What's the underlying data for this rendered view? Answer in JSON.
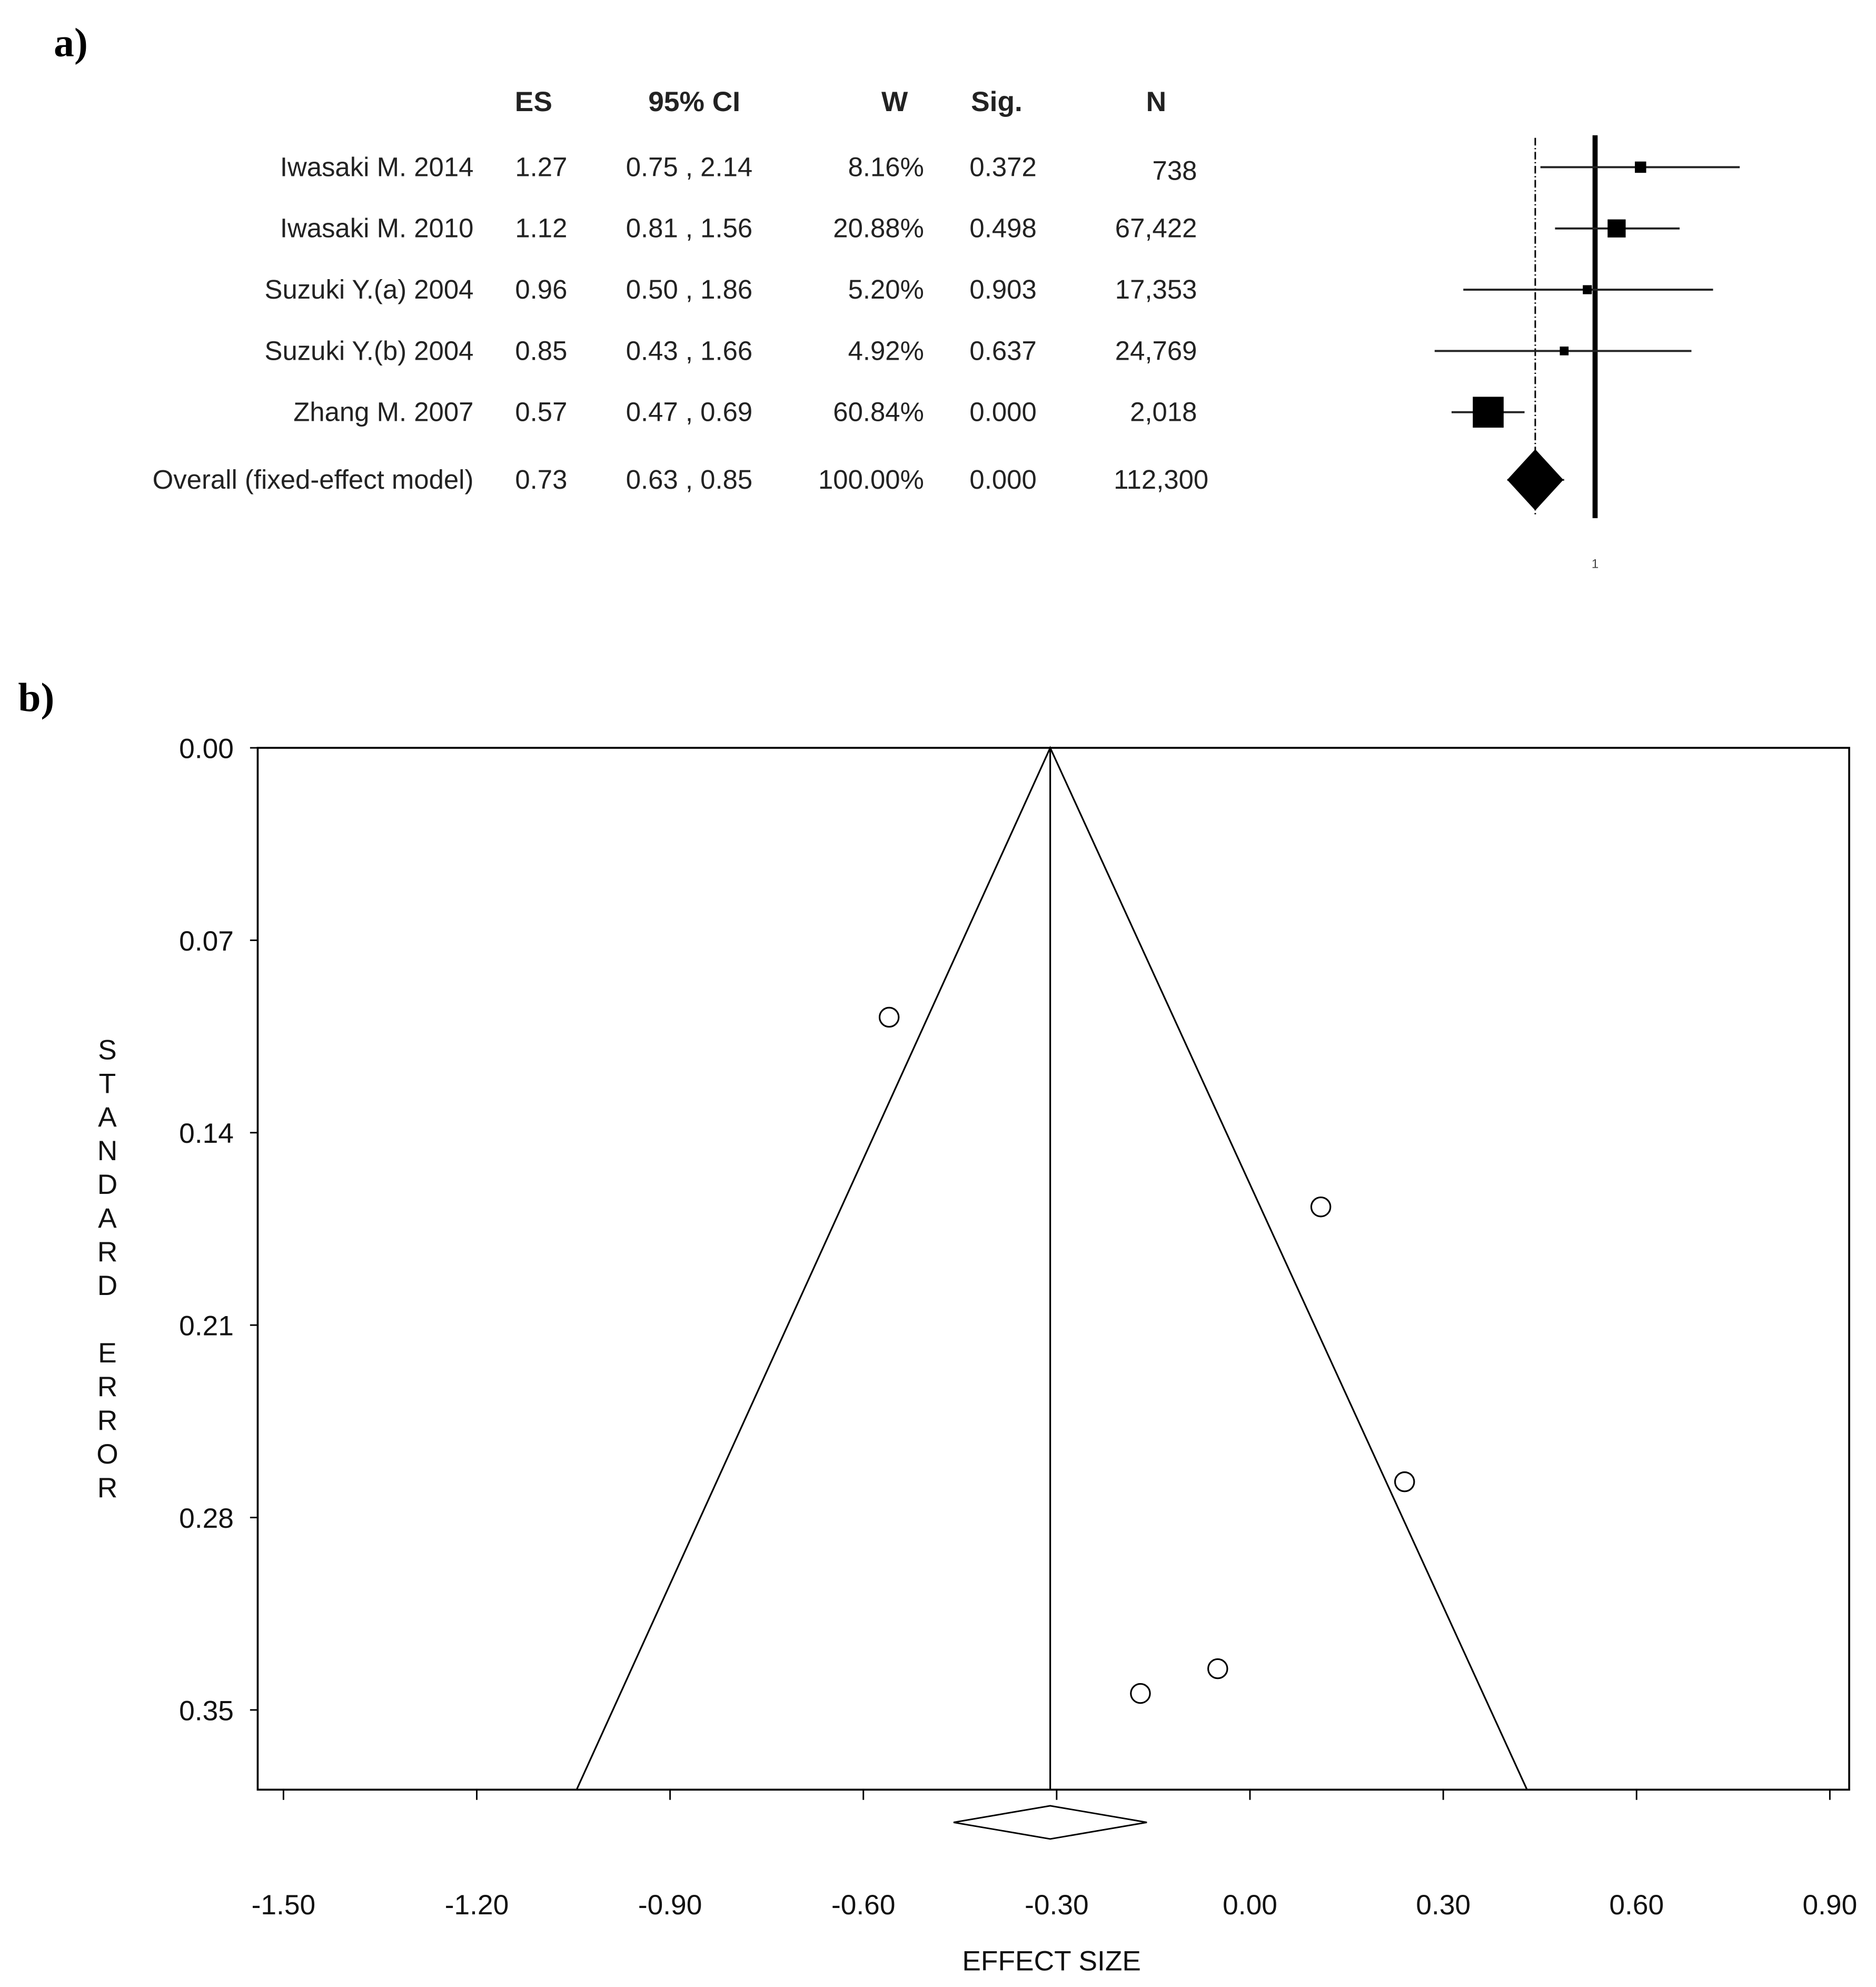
{
  "panel_a_label": "a)",
  "panel_b_label": "b)",
  "chart_data": [
    {
      "type": "forest",
      "scale": "log",
      "reference_line": 1,
      "tick_labels": [
        "1"
      ],
      "columns": [
        "ES",
        "95% CI",
        "W",
        "Sig.",
        "N"
      ],
      "rows": [
        {
          "study": "Iwasaki M. 2014",
          "es": 1.27,
          "lo": 0.75,
          "hi": 2.14,
          "ci": "0.75 , 2.14",
          "es_label": "1.27",
          "w": "8.16%",
          "sig": "0.372",
          "n": "738",
          "weight": 8.16
        },
        {
          "study": "Iwasaki M. 2010",
          "es": 1.12,
          "lo": 0.81,
          "hi": 1.56,
          "ci": "0.81 , 1.56",
          "es_label": "1.12",
          "w": "20.88%",
          "sig": "0.498",
          "n": "67,422",
          "weight": 20.88
        },
        {
          "study": "Suzuki Y.(a) 2004",
          "es": 0.96,
          "lo": 0.5,
          "hi": 1.86,
          "ci": "0.50 , 1.86",
          "es_label": "0.96",
          "w": "5.20%",
          "sig": "0.903",
          "n": "17,353",
          "weight": 5.2
        },
        {
          "study": "Suzuki Y.(b) 2004",
          "es": 0.85,
          "lo": 0.43,
          "hi": 1.66,
          "ci": "0.43 , 1.66",
          "es_label": "0.85",
          "w": "4.92%",
          "sig": "0.637",
          "n": "24,769",
          "weight": 4.92
        },
        {
          "study": "Zhang M. 2007",
          "es": 0.57,
          "lo": 0.47,
          "hi": 0.69,
          "ci": "0.47 , 0.69",
          "es_label": "0.57",
          "w": "60.84%",
          "sig": "0.000",
          "n": "2,018",
          "weight": 60.84
        }
      ],
      "overall": {
        "study": "Overall (fixed-effect model)",
        "es": 0.73,
        "lo": 0.63,
        "hi": 0.85,
        "ci": "0.63 , 0.85",
        "es_label": "0.73",
        "w": "100.00%",
        "sig": "0.000",
        "n": "112,300"
      }
    },
    {
      "type": "scatter",
      "subtype": "funnel",
      "xlabel": "EFFECT SIZE",
      "ylabel": "STANDARD ERROR",
      "xlim": [
        -1.54,
        0.93
      ],
      "ylim": [
        0.379,
        0.0
      ],
      "y_inverted": true,
      "x_ticks": [
        -1.5,
        -1.2,
        -0.9,
        -0.6,
        -0.3,
        0.0,
        0.3,
        0.6,
        0.9
      ],
      "x_tick_labels": [
        "-1.50",
        "-1.20",
        "-0.90",
        "-0.60",
        "-0.30",
        "0.00",
        "0.30",
        "0.60",
        "0.90"
      ],
      "y_ticks": [
        0.0,
        0.07,
        0.14,
        0.21,
        0.28,
        0.35
      ],
      "y_tick_labels": [
        "0.00",
        "0.07",
        "0.14",
        "0.21",
        "0.28",
        "0.35"
      ],
      "points": [
        {
          "x": -0.56,
          "y": 0.098
        },
        {
          "x": 0.11,
          "y": 0.167
        },
        {
          "x": 0.24,
          "y": 0.267
        },
        {
          "x": -0.05,
          "y": 0.335
        },
        {
          "x": -0.17,
          "y": 0.344
        }
      ],
      "pooled_effect": -0.31,
      "funnel_base": {
        "y": 0.379,
        "x_left": -1.045,
        "x_right": 0.43
      },
      "pooled_diamond": {
        "lo": -0.46,
        "est": -0.31,
        "hi": -0.16
      },
      "grid": false
    }
  ]
}
